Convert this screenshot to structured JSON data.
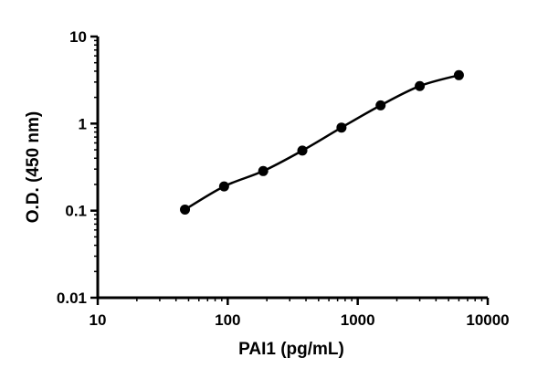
{
  "chart_data": {
    "type": "scatter",
    "title": "",
    "xlabel": "PAI1 (pg/mL)",
    "ylabel": "O.D. (450 nm)",
    "x_scale": "log",
    "y_scale": "log",
    "xlim": [
      10,
      10000
    ],
    "ylim": [
      0.01,
      10
    ],
    "x_ticks": [
      10,
      100,
      1000,
      10000
    ],
    "x_tick_labels": [
      "10",
      "100",
      "1000",
      "10000"
    ],
    "y_ticks": [
      0.01,
      0.1,
      1,
      10
    ],
    "y_tick_labels": [
      "0.01",
      "0.1",
      "1",
      "10"
    ],
    "grid": false,
    "series": [
      {
        "x": [
          46.9,
          93.8,
          187.5,
          375,
          750,
          1500,
          3000,
          6000
        ],
        "y": [
          0.103,
          0.19,
          0.285,
          0.49,
          0.9,
          1.62,
          2.7,
          3.6
        ],
        "fit_curve": true
      }
    ],
    "colors": {
      "marker": "#000000",
      "line": "#000000"
    }
  }
}
